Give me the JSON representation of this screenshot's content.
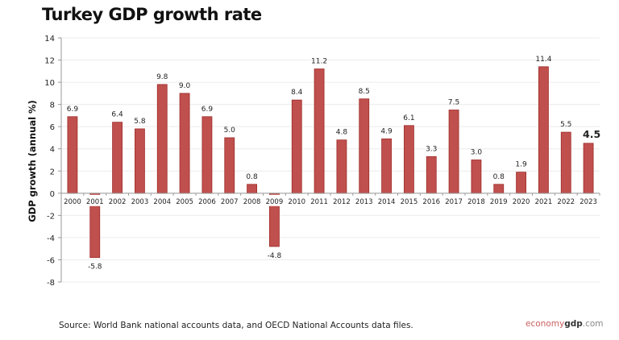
{
  "chart_data": {
    "type": "bar",
    "title": "Turkey GDP growth rate",
    "ylabel": "GDP growth (annual %)",
    "xlabel": "",
    "ylim": [
      -8,
      14
    ],
    "yticks": [
      14,
      12,
      10,
      8,
      6,
      4,
      2,
      0,
      -2,
      -4,
      -6,
      -8
    ],
    "grid": true,
    "categories": [
      "2000",
      "2001",
      "2002",
      "2003",
      "2004",
      "2005",
      "2006",
      "2007",
      "2008",
      "2009",
      "2010",
      "2011",
      "2012",
      "2013",
      "2014",
      "2015",
      "2016",
      "2017",
      "2018",
      "2019",
      "2020",
      "2021",
      "2022",
      "2023"
    ],
    "values": [
      6.9,
      -5.8,
      6.4,
      5.8,
      9.8,
      9.0,
      6.9,
      5.0,
      0.8,
      -4.8,
      8.4,
      11.2,
      4.8,
      8.5,
      4.9,
      6.1,
      3.3,
      7.5,
      3.0,
      0.8,
      1.9,
      11.4,
      5.5,
      4.5
    ],
    "labels": [
      "6.9",
      "-5.8",
      "6.4",
      "5.8",
      "9.8",
      "9.0",
      "6.9",
      "5.0",
      "0.8",
      "-4.8",
      "8.4",
      "11.2",
      "4.8",
      "8.5",
      "4.9",
      "6.1",
      "3.3",
      "7.5",
      "3.0",
      "0.8",
      "1.9",
      "11.4",
      "5.5",
      "4.5"
    ],
    "bar_color": "#c0504d",
    "highlight_last_label": true
  },
  "footer": {
    "source": "Source:  World Bank national accounts data, and OECD National Accounts data files.",
    "logo_part1": "economy",
    "logo_part2": "gdp",
    "logo_part3": ".com"
  }
}
